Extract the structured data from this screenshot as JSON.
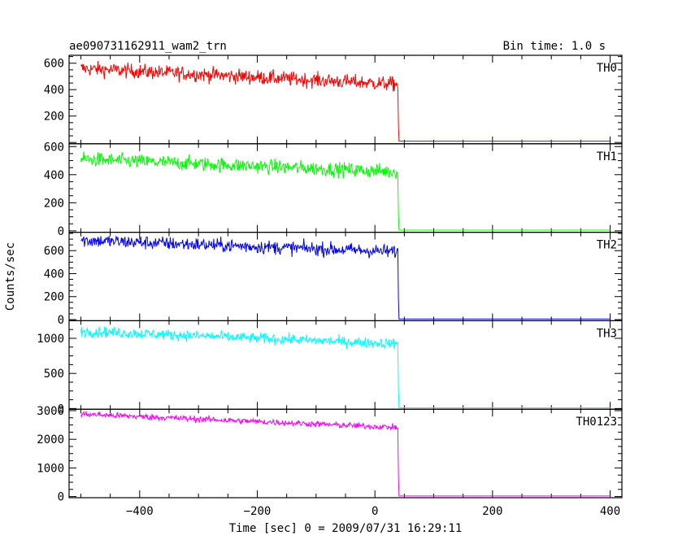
{
  "chart_data": {
    "type": "line",
    "title": "ae090731162911_wam2_trn",
    "subtitle": "Bin time: 1.0 s",
    "xlabel": "Time [sec] 0 = 2009/07/31 16:29:11",
    "ylabel": "Counts/sec",
    "xlim": [
      -520,
      420
    ],
    "x_ticks": [
      -400,
      -200,
      0,
      200,
      400
    ],
    "x_tick_labels": [
      "−400",
      "−200",
      "0",
      "200",
      "400"
    ],
    "x_data_range": [
      -500,
      400
    ],
    "step_time": 40,
    "grid": false,
    "legend": "none",
    "panels": [
      {
        "name": "TH0",
        "color": "#ff0000",
        "ylim": [
          -10,
          660
        ],
        "yticks": [
          200,
          400,
          600
        ],
        "ytick_labels": [
          "200",
          "400",
          "600"
        ],
        "start_level": 560,
        "end_level": 440,
        "noise": 28,
        "after_level": 10
      },
      {
        "name": "TH1",
        "color": "#00ff00",
        "ylim": [
          -10,
          620
        ],
        "yticks": [
          0,
          200,
          400,
          600
        ],
        "ytick_labels": [
          "0",
          "200",
          "400",
          "600"
        ],
        "start_level": 510,
        "end_level": 420,
        "noise": 26,
        "after_level": 5
      },
      {
        "name": "TH2",
        "color": "#0000ff",
        "ylim": [
          -10,
          760
        ],
        "yticks": [
          0,
          200,
          400,
          600
        ],
        "ytick_labels": [
          "0",
          "200",
          "400",
          "600"
        ],
        "start_level": 690,
        "end_level": 590,
        "noise": 30,
        "after_level": 5
      },
      {
        "name": "TH3",
        "color": "#00ffff",
        "ylim": [
          -10,
          1250
        ],
        "yticks": [
          0,
          500,
          1000
        ],
        "ytick_labels": [
          "0",
          "500",
          "1000"
        ],
        "start_level": 1100,
        "end_level": 920,
        "noise": 38,
        "after_level": 10
      },
      {
        "name": "TH0123",
        "color": "#ff00ff",
        "ylim": [
          -40,
          3050
        ],
        "yticks": [
          0,
          1000,
          2000,
          3000
        ],
        "ytick_labels": [
          "0",
          "1000",
          "2000",
          "3000"
        ],
        "start_level": 2880,
        "end_level": 2410,
        "noise": 55,
        "after_level": 20
      }
    ]
  }
}
